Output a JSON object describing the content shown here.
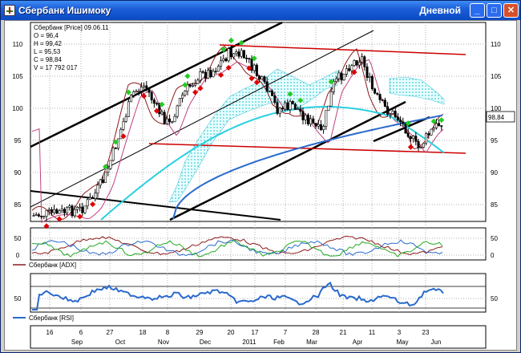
{
  "window": {
    "title": "Сбербанк Ишимоку",
    "view_name": "Дневной",
    "minimize_label": "_",
    "maximize_label": "□",
    "close_label": "✕"
  },
  "price_panel": {
    "header": "Сбербанк [Price] 09.06.11",
    "ohlc": [
      "O = 96,4",
      "H = 99,42",
      "L = 95,53",
      "C = 98,84",
      "V = 17 792 017"
    ],
    "current_price": "98,84",
    "y_ticks": [
      "110",
      "105",
      "100",
      "95",
      "90",
      "85"
    ]
  },
  "adx_panel": {
    "legend": "Сбербанк [ADX]",
    "y_ticks": [
      "50",
      "0"
    ]
  },
  "rsi_panel": {
    "legend": "Сбербанк [RSI]",
    "y_ticks": [
      "50"
    ]
  },
  "x_axis": {
    "days": [
      "16",
      "6",
      "27",
      "18",
      "8",
      "29",
      "20",
      "17",
      "7",
      "28",
      "21",
      "11",
      "3",
      "23"
    ],
    "months": [
      "Sep",
      "Oct",
      "Nov",
      "Dec",
      "2011",
      "Feb",
      "Mar",
      "Apr",
      "May",
      "Jun"
    ]
  },
  "colors": {
    "candle_up": "#ffffff",
    "candle_down": "#000000",
    "buy_marker": "#22cc22",
    "sell_marker": "#dd0000",
    "tenkan": "#8b1a1a",
    "kijun": "#c04080",
    "sma_long": "#2a6acc",
    "sma_mid": "#2ad0e0",
    "trend_red": "#cc0000",
    "cloud": "#40d0e0"
  }
}
